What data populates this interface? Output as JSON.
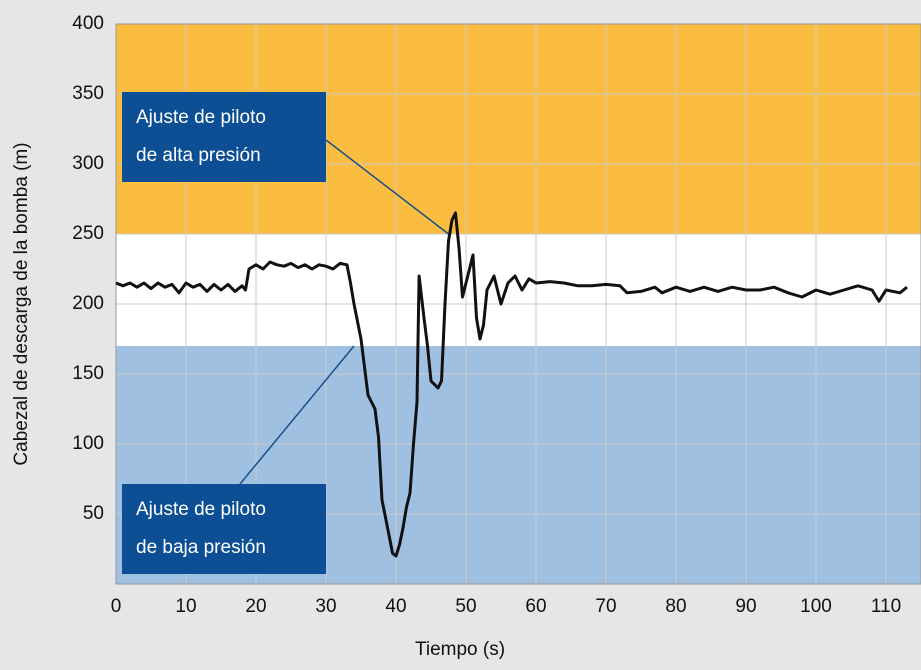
{
  "chart_data": {
    "type": "line",
    "xlabel": "Tiempo (s)",
    "ylabel": "Cabezal de descarga de la bomba (m)",
    "xlim": [
      0,
      115
    ],
    "xticks": [
      0,
      10,
      20,
      30,
      40,
      50,
      60,
      70,
      80,
      90,
      100,
      110
    ],
    "ylim": [
      0,
      400
    ],
    "yticks": [
      50,
      100,
      150,
      200,
      250,
      300,
      350,
      400
    ],
    "grid": true,
    "color": "#111111",
    "bands": [
      {
        "from": 250,
        "to": 400,
        "color": "#fbbd3f"
      },
      {
        "from": 170,
        "to": 250,
        "color": "#ffffff"
      },
      {
        "from": 0,
        "to": 170,
        "color": "#a0c0e2"
      }
    ],
    "x": [
      0,
      1,
      2,
      3,
      4,
      5,
      6,
      7,
      8,
      9,
      10,
      11,
      12,
      13,
      14,
      15,
      16,
      17,
      18,
      18.5,
      19,
      20,
      21,
      22,
      23,
      24,
      25,
      26,
      27,
      28,
      29,
      30,
      31,
      32,
      33,
      33.5,
      34,
      35,
      35.5,
      36,
      37,
      37.5,
      38,
      39,
      39.5,
      40,
      40.5,
      41,
      41.5,
      42,
      42.5,
      43,
      43.3,
      44,
      44.5,
      45,
      46,
      46.5,
      47,
      47.5,
      48,
      48.5,
      49,
      49.5,
      50,
      51,
      51.5,
      52,
      52.5,
      53,
      54,
      55,
      56,
      57,
      58,
      59,
      60,
      62,
      64,
      66,
      68,
      70,
      72,
      73,
      75,
      77,
      78,
      80,
      82,
      84,
      86,
      88,
      90,
      92,
      94,
      96,
      98,
      100,
      102,
      104,
      106,
      108,
      109,
      110,
      112,
      113
    ],
    "values": [
      215,
      213,
      215,
      212,
      215,
      211,
      215,
      212,
      214,
      208,
      215,
      212,
      214,
      209,
      214,
      210,
      214,
      209,
      213,
      210,
      225,
      228,
      225,
      230,
      228,
      227,
      229,
      226,
      228,
      225,
      228,
      227,
      225,
      229,
      228,
      215,
      200,
      175,
      155,
      135,
      125,
      105,
      60,
      35,
      22,
      20,
      28,
      40,
      55,
      65,
      100,
      130,
      220,
      190,
      170,
      145,
      140,
      145,
      200,
      245,
      260,
      265,
      240,
      205,
      215,
      235,
      190,
      175,
      185,
      210,
      220,
      200,
      215,
      220,
      210,
      218,
      215,
      216,
      215,
      213,
      213,
      214,
      213,
      208,
      209,
      212,
      208,
      212,
      209,
      212,
      209,
      212,
      210,
      210,
      212,
      208,
      205,
      210,
      207,
      210,
      213,
      210,
      202,
      210,
      208,
      212
    ],
    "annotations": [
      {
        "lines": [
          "Ajuste de piloto",
          "de alta presión"
        ],
        "x": 47.5,
        "y": 250
      },
      {
        "lines": [
          "Ajuste de piloto",
          "de baja presión"
        ],
        "x": 34,
        "y": 170
      }
    ]
  }
}
